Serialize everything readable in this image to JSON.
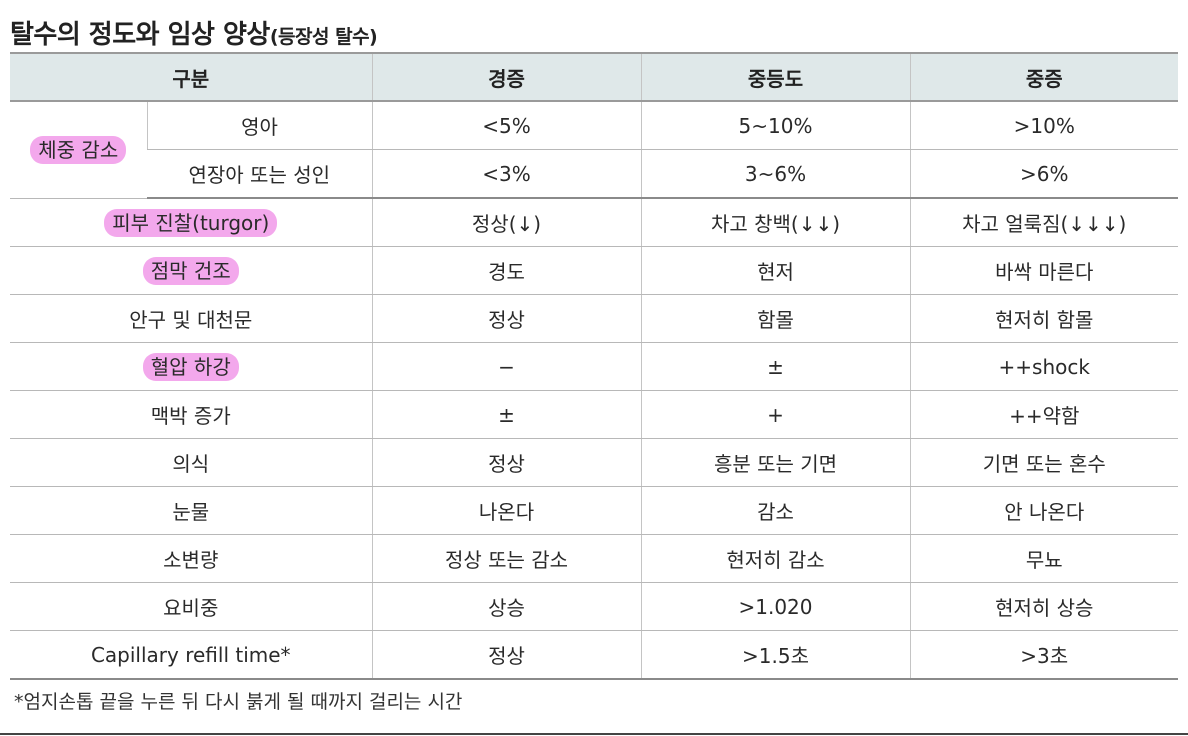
{
  "title": {
    "main": "탈수의 정도와 임상 양상",
    "sub": "(등장성 탈수)"
  },
  "header": [
    "구분",
    "경증",
    "중등도",
    "중증"
  ],
  "weight_group": {
    "label": "체중 감소",
    "rows": [
      {
        "label": "영아",
        "cells": [
          "<5%",
          "5~10%",
          ">10%"
        ]
      },
      {
        "label": "연장아 또는 성인",
        "cells": [
          "<3%",
          "3~6%",
          ">6%"
        ]
      }
    ]
  },
  "rows": [
    {
      "label": "피부 진찰(turgor)",
      "highlight": true,
      "cells": [
        "정상(↓)",
        "차고 창백(↓↓)",
        "차고 얼룩짐(↓↓↓)"
      ]
    },
    {
      "label": "점막 건조",
      "highlight": true,
      "cells": [
        "경도",
        "현저",
        "바싹 마른다"
      ]
    },
    {
      "label": "안구 및 대천문",
      "highlight": false,
      "cells": [
        "정상",
        "함몰",
        "현저히 함몰"
      ]
    },
    {
      "label": "혈압 하강",
      "highlight": true,
      "cells": [
        "−",
        "±",
        "++shock"
      ]
    },
    {
      "label": "맥박 증가",
      "highlight": false,
      "cells": [
        "±",
        "+",
        "++약함"
      ]
    },
    {
      "label": "의식",
      "highlight": false,
      "cells": [
        "정상",
        "흥분 또는 기면",
        "기면 또는 혼수"
      ]
    },
    {
      "label": "눈물",
      "highlight": false,
      "cells": [
        "나온다",
        "감소",
        "안 나온다"
      ]
    },
    {
      "label": "소변량",
      "highlight": false,
      "cells": [
        "정상 또는 감소",
        "현저히 감소",
        "무뇨"
      ]
    },
    {
      "label": "요비중",
      "highlight": false,
      "cells": [
        "상승",
        ">1.020",
        "현저히 상승"
      ]
    },
    {
      "label": "Capillary refill time*",
      "highlight": false,
      "cells": [
        "정상",
        ">1.5초",
        ">3초"
      ]
    }
  ],
  "footnote": "*엄지손톱 끝을 누른 뒤 다시 붉게 될 때까지 걸리는 시간",
  "colors": {
    "header_bg": "#dfe8e9",
    "highlight": "#f3a8ec"
  }
}
